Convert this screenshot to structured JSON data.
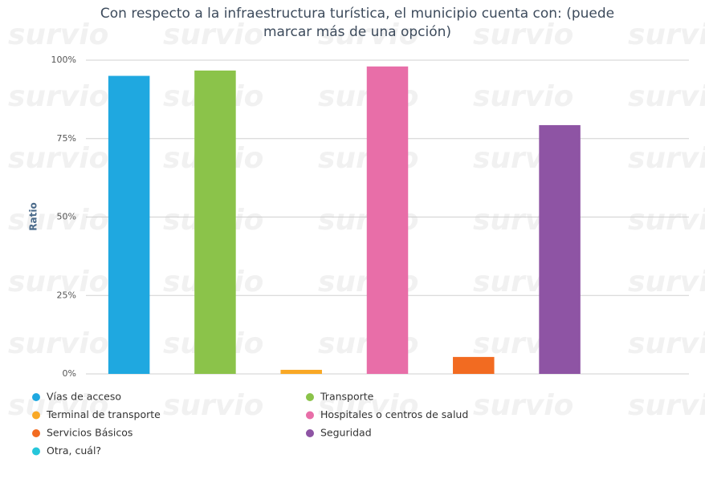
{
  "chart_data": {
    "type": "bar",
    "title": "Con respecto a la infraestructura turística, el municipio cuenta con: (puede marcar más de una opción)",
    "y_label": "Ratio",
    "watermark": "survio",
    "categories": [
      "Vías de acceso",
      "Transporte",
      "Terminal de transporte",
      "Hospitales o centros de salud",
      "Servicios Básicos",
      "Seguridad",
      "Otra, cuál?"
    ],
    "values": [
      95,
      96.7,
      1.3,
      98,
      5.4,
      79.3,
      0
    ],
    "colors": [
      "#1fa8e0",
      "#8bc34a",
      "#f9a825",
      "#e86ea8",
      "#f26b21",
      "#8e54a4",
      "#26c6da"
    ],
    "ylim": [
      0,
      100
    ],
    "yticks": [
      {
        "value": 0,
        "label": "0%"
      },
      {
        "value": 25,
        "label": "25%"
      },
      {
        "value": 50,
        "label": "50%"
      },
      {
        "value": 75,
        "label": "75%"
      },
      {
        "value": 100,
        "label": "100%"
      }
    ],
    "grid": true
  }
}
